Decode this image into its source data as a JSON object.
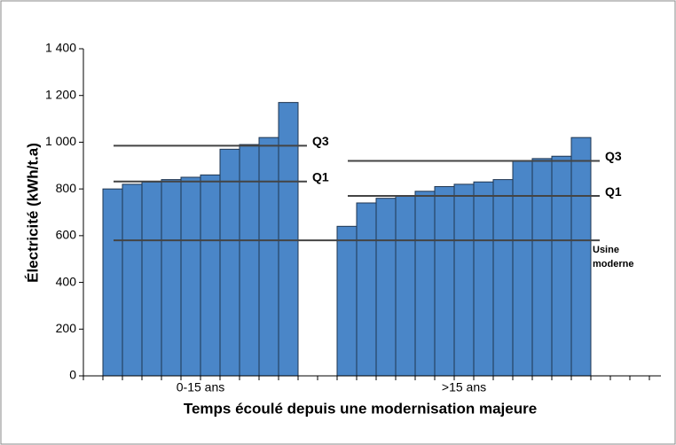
{
  "chart_data": {
    "type": "bar",
    "y_label": "Électricité (kWh/t.a)",
    "x_label": "Temps écoulé depuis une modernisation majeure",
    "ylim": [
      0,
      1400
    ],
    "yticks": [
      0,
      200,
      400,
      600,
      800,
      {
        "value": 1000,
        "label": "1 000"
      },
      {
        "value": 1200,
        "label": "1 200"
      },
      {
        "value": 1400,
        "label": "1 400"
      }
    ],
    "color": "#4a86c8",
    "groups": [
      {
        "label": "0-15 ans",
        "values": [
          800,
          820,
          830,
          840,
          850,
          860,
          970,
          990,
          1020,
          1170
        ],
        "lines": [
          {
            "name": "Q3",
            "value": 985
          },
          {
            "name": "Q1",
            "value": 832
          }
        ]
      },
      {
        "label": ">15 ans",
        "values": [
          640,
          740,
          760,
          770,
          790,
          810,
          820,
          830,
          840,
          920,
          930,
          940,
          1020
        ],
        "lines": [
          {
            "name": "Q3",
            "value": 920
          },
          {
            "name": "Q1",
            "value": 770
          }
        ]
      }
    ],
    "reference": {
      "name": "Usine moderne",
      "value": 580
    }
  }
}
